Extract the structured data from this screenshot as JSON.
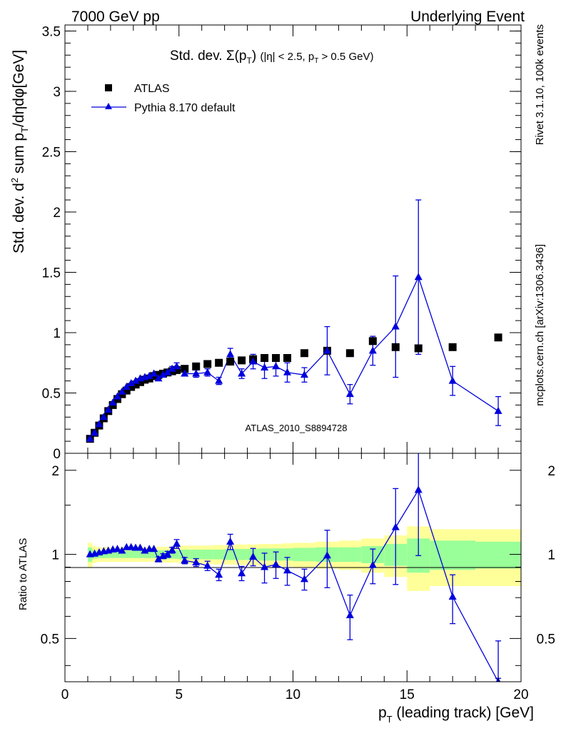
{
  "header": {
    "left": "7000 GeV pp",
    "right": "Underlying Event"
  },
  "side_labels": {
    "top": "Rivet 3.1.10,  100k events",
    "bottom": "mcplots.cern.ch [arXiv:1306.3436]"
  },
  "watermark": "ATLAS_2010_S8894728",
  "legend": {
    "data_label": "ATLAS",
    "mc_label": "Pythia 8.170 default"
  },
  "colors": {
    "data": "#000000",
    "mc": "#0000dd",
    "band_inner": "#99ff99",
    "band_outer": "#ffff99",
    "watermark": "#999999",
    "side_text": "#888888"
  },
  "chart_data": [
    {
      "type": "scatter",
      "title": "Std. dev. Σ(pT) (|η| < 2.5, pT > 0.5 GeV)",
      "xlabel": "pT (leading track) [GeV]",
      "ylabel": "Std. dev. d² sum pT/dηdφ[GeV]",
      "xlim": [
        0,
        20
      ],
      "ylim": [
        0,
        3.55
      ],
      "yticks": [
        "0",
        "0.5",
        "1",
        "1.5",
        "2",
        "2.5",
        "3",
        "3.5"
      ],
      "series": [
        {
          "name": "ATLAS",
          "marker": "square",
          "x": [
            1.1,
            1.3,
            1.5,
            1.7,
            1.9,
            2.1,
            2.3,
            2.5,
            2.7,
            2.9,
            3.1,
            3.3,
            3.5,
            3.7,
            3.9,
            4.1,
            4.3,
            4.5,
            4.7,
            4.9,
            5.25,
            5.75,
            6.25,
            6.75,
            7.25,
            7.75,
            8.25,
            8.75,
            9.25,
            9.75,
            10.5,
            11.5,
            12.5,
            13.5,
            14.5,
            15.5,
            17.0,
            19.0
          ],
          "y": [
            0.12,
            0.17,
            0.23,
            0.29,
            0.35,
            0.4,
            0.45,
            0.49,
            0.52,
            0.55,
            0.57,
            0.59,
            0.61,
            0.62,
            0.64,
            0.65,
            0.66,
            0.67,
            0.68,
            0.69,
            0.7,
            0.72,
            0.74,
            0.75,
            0.76,
            0.77,
            0.78,
            0.79,
            0.79,
            0.79,
            0.83,
            0.85,
            0.83,
            0.93,
            0.88,
            0.87,
            0.88,
            0.96
          ]
        },
        {
          "name": "Pythia 8.170 default",
          "marker": "triangle",
          "x": [
            1.1,
            1.3,
            1.5,
            1.7,
            1.9,
            2.1,
            2.3,
            2.5,
            2.7,
            2.9,
            3.1,
            3.3,
            3.5,
            3.7,
            3.9,
            4.1,
            4.3,
            4.5,
            4.7,
            4.9,
            5.25,
            5.75,
            6.25,
            6.75,
            7.25,
            7.75,
            8.25,
            8.75,
            9.25,
            9.75,
            10.5,
            11.5,
            12.5,
            13.5,
            14.5,
            15.5,
            17.0,
            19.0
          ],
          "y": [
            0.12,
            0.17,
            0.24,
            0.3,
            0.36,
            0.42,
            0.47,
            0.51,
            0.55,
            0.58,
            0.6,
            0.62,
            0.63,
            0.64,
            0.66,
            0.62,
            0.65,
            0.67,
            0.7,
            0.72,
            0.66,
            0.66,
            0.67,
            0.6,
            0.82,
            0.66,
            0.76,
            0.71,
            0.72,
            0.67,
            0.65,
            0.85,
            0.49,
            0.85,
            1.05,
            1.46,
            0.6,
            0.35
          ],
          "err": [
            0.005,
            0.005,
            0.005,
            0.005,
            0.005,
            0.006,
            0.006,
            0.007,
            0.008,
            0.009,
            0.01,
            0.01,
            0.01,
            0.012,
            0.013,
            0.015,
            0.016,
            0.017,
            0.02,
            0.03,
            0.02,
            0.03,
            0.03,
            0.03,
            0.05,
            0.04,
            0.06,
            0.09,
            0.08,
            0.08,
            0.06,
            0.2,
            0.08,
            0.12,
            0.42,
            0.64,
            0.12,
            0.12
          ]
        }
      ]
    },
    {
      "type": "scatter",
      "ylabel": "Ratio to ATLAS",
      "xlim": [
        0,
        20
      ],
      "ylim": [
        0.35,
        2.3
      ],
      "xticks": [
        "0",
        "5",
        "10",
        "15",
        "20"
      ],
      "yticks": [
        "0.5",
        "1",
        "2"
      ],
      "band": {
        "edges": [
          1.0,
          1.2,
          1.4,
          1.6,
          1.8,
          2.0,
          2.2,
          2.4,
          2.6,
          2.8,
          3.0,
          3.2,
          3.4,
          3.6,
          3.8,
          4.0,
          4.2,
          4.4,
          4.6,
          4.8,
          5.0,
          5.5,
          6.0,
          6.5,
          7.0,
          7.5,
          8.0,
          8.5,
          9.0,
          9.5,
          10.0,
          11.0,
          12.0,
          13.0,
          14.0,
          15.0,
          16.0,
          18.0,
          20.0
        ],
        "inner": [
          0.06,
          0.035,
          0.03,
          0.03,
          0.03,
          0.03,
          0.03,
          0.03,
          0.03,
          0.03,
          0.03,
          0.03,
          0.03,
          0.03,
          0.03,
          0.035,
          0.035,
          0.035,
          0.035,
          0.035,
          0.04,
          0.04,
          0.04,
          0.04,
          0.045,
          0.045,
          0.045,
          0.05,
          0.05,
          0.05,
          0.055,
          0.06,
          0.06,
          0.07,
          0.09,
          0.14,
          0.12,
          0.11
        ],
        "outer": [
          0.1,
          0.07,
          0.06,
          0.06,
          0.06,
          0.06,
          0.06,
          0.06,
          0.06,
          0.06,
          0.06,
          0.06,
          0.06,
          0.06,
          0.06,
          0.065,
          0.065,
          0.065,
          0.065,
          0.065,
          0.075,
          0.075,
          0.075,
          0.08,
          0.08,
          0.085,
          0.085,
          0.09,
          0.09,
          0.095,
          0.1,
          0.11,
          0.12,
          0.14,
          0.17,
          0.26,
          0.23,
          0.23
        ]
      },
      "series": [
        {
          "name": "Pythia 8.170 default",
          "x": [
            1.1,
            1.3,
            1.5,
            1.7,
            1.9,
            2.1,
            2.3,
            2.5,
            2.7,
            2.9,
            3.1,
            3.3,
            3.5,
            3.7,
            3.9,
            4.1,
            4.3,
            4.5,
            4.7,
            4.9,
            5.25,
            5.75,
            6.25,
            6.75,
            7.25,
            7.75,
            8.25,
            8.75,
            9.25,
            9.75,
            10.5,
            11.5,
            12.5,
            13.5,
            14.5,
            15.5,
            17.0,
            19.0
          ],
          "y": [
            1.0,
            1.005,
            1.015,
            1.025,
            1.03,
            1.04,
            1.045,
            1.03,
            1.06,
            1.06,
            1.055,
            1.055,
            1.03,
            1.045,
            1.045,
            0.96,
            0.985,
            1.0,
            1.035,
            1.09,
            0.95,
            0.935,
            0.91,
            0.845,
            1.11,
            0.855,
            0.98,
            0.9,
            0.92,
            0.875,
            0.815,
            0.99,
            0.605,
            0.915,
            1.25,
            1.7,
            0.705,
            0.35
          ],
          "err": [
            0.01,
            0.01,
            0.01,
            0.01,
            0.01,
            0.01,
            0.01,
            0.01,
            0.012,
            0.012,
            0.012,
            0.012,
            0.015,
            0.015,
            0.015,
            0.02,
            0.02,
            0.025,
            0.025,
            0.04,
            0.025,
            0.03,
            0.035,
            0.04,
            0.07,
            0.05,
            0.07,
            0.11,
            0.1,
            0.1,
            0.07,
            0.23,
            0.11,
            0.13,
            0.47,
            0.71,
            0.14,
            0.14
          ]
        }
      ]
    }
  ]
}
